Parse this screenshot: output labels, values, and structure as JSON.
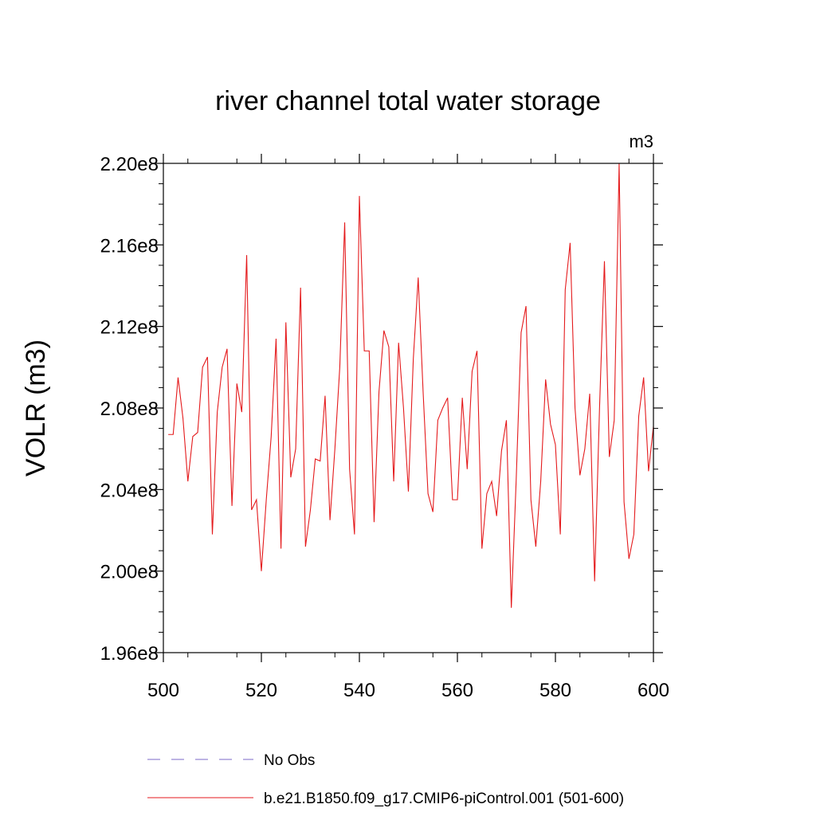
{
  "chart_data": {
    "type": "line",
    "title": "river channel total water storage",
    "units_label": "m3",
    "xlabel": "",
    "ylabel": "VOLR  (m3)",
    "xlim": [
      500,
      600
    ],
    "ylim": [
      196000000.0,
      220000000.0
    ],
    "x_ticks": [
      500,
      520,
      540,
      560,
      580,
      600
    ],
    "x_tick_labels": [
      "500",
      "520",
      "540",
      "560",
      "580",
      "600"
    ],
    "y_ticks": [
      196000000.0,
      200000000.0,
      204000000.0,
      208000000.0,
      212000000.0,
      216000000.0,
      220000000.0
    ],
    "y_tick_labels": [
      "1.96e8",
      "2.00e8",
      "2.04e8",
      "2.08e8",
      "2.12e8",
      "2.16e8",
      "2.20e8"
    ],
    "legend": [
      {
        "label": "No Obs",
        "color": "#7b68c8",
        "style": "dashed"
      },
      {
        "label": "b.e21.B1850.f09_g17.CMIP6-piControl.001 (501-600)",
        "color": "#e41a1c",
        "style": "solid"
      }
    ],
    "series": [
      {
        "name": "b.e21.B1850.f09_g17.CMIP6-piControl.001 (501-600)",
        "color": "#e41a1c",
        "x": [
          501,
          502,
          503,
          504,
          505,
          506,
          507,
          508,
          509,
          510,
          511,
          512,
          513,
          514,
          515,
          516,
          517,
          518,
          519,
          520,
          521,
          522,
          523,
          524,
          525,
          526,
          527,
          528,
          529,
          530,
          531,
          532,
          533,
          534,
          535,
          536,
          537,
          538,
          539,
          540,
          541,
          542,
          543,
          544,
          545,
          546,
          547,
          548,
          549,
          550,
          551,
          552,
          553,
          554,
          555,
          556,
          557,
          558,
          559,
          560,
          561,
          562,
          563,
          564,
          565,
          566,
          567,
          568,
          569,
          570,
          571,
          572,
          573,
          574,
          575,
          576,
          577,
          578,
          579,
          580,
          581,
          582,
          583,
          584,
          585,
          586,
          587,
          588,
          589,
          590,
          591,
          592,
          593,
          594,
          595,
          596,
          597,
          598,
          599,
          600
        ],
        "values": [
          206700000.0,
          206700000.0,
          209500000.0,
          207500000.0,
          204400000.0,
          206600000.0,
          206800000.0,
          210000000.0,
          210500000.0,
          201800000.0,
          207800000.0,
          210000000.0,
          210900000.0,
          203200000.0,
          209200000.0,
          207800000.0,
          215500000.0,
          203000000.0,
          203500000.0,
          200000000.0,
          203500000.0,
          206600000.0,
          211400000.0,
          201100000.0,
          212200000.0,
          204600000.0,
          206000000.0,
          213900000.0,
          201200000.0,
          203000000.0,
          205500000.0,
          205400000.0,
          208600000.0,
          202500000.0,
          206000000.0,
          210000000.0,
          217100000.0,
          205000000.0,
          201800000.0,
          218400000.0,
          210800000.0,
          210800000.0,
          202400000.0,
          208800000.0,
          211800000.0,
          211000000.0,
          204400000.0,
          211200000.0,
          208000000.0,
          203900000.0,
          210400000.0,
          214400000.0,
          208800000.0,
          203800000.0,
          202900000.0,
          207400000.0,
          208000000.0,
          208500000.0,
          203500000.0,
          203500000.0,
          208500000.0,
          205000000.0,
          209800000.0,
          210800000.0,
          201100000.0,
          203800000.0,
          204400000.0,
          202700000.0,
          205900000.0,
          207400000.0,
          198200000.0,
          204500000.0,
          211700000.0,
          213000000.0,
          203500000.0,
          201200000.0,
          204400000.0,
          209400000.0,
          207200000.0,
          206200000.0,
          201800000.0,
          213800000.0,
          216100000.0,
          208000000.0,
          204700000.0,
          206000000.0,
          208700000.0,
          199500000.0,
          208000000.0,
          215200000.0,
          205600000.0,
          207400000.0,
          220000000.0,
          203400000.0,
          200600000.0,
          201800000.0,
          207600000.0,
          209500000.0,
          204900000.0,
          207100000.0
        ]
      }
    ]
  }
}
